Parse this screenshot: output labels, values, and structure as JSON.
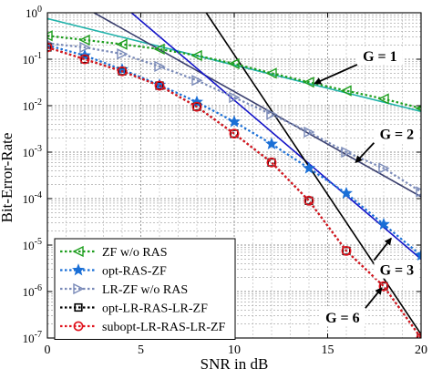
{
  "chart_data": {
    "type": "line",
    "title": "",
    "xlabel": "SNR in dB",
    "ylabel": "Bit-Error-Rate",
    "xlim": [
      0,
      20
    ],
    "ylim": [
      1e-07,
      1
    ],
    "y_scale": "log",
    "grid": "on (major and minor)",
    "legend_placement": "bottom-left",
    "x_ticks": [
      0,
      5,
      10,
      15,
      20
    ],
    "y_ticks": [
      {
        "value": 1,
        "mantissa": "10",
        "exponent": "0"
      },
      {
        "value": 0.1,
        "mantissa": "10",
        "exponent": "-1"
      },
      {
        "value": 0.01,
        "mantissa": "10",
        "exponent": "-2"
      },
      {
        "value": 0.001,
        "mantissa": "10",
        "exponent": "-3"
      },
      {
        "value": 0.0001,
        "mantissa": "10",
        "exponent": "-4"
      },
      {
        "value": 1e-05,
        "mantissa": "10",
        "exponent": "-5"
      },
      {
        "value": 1e-06,
        "mantissa": "10",
        "exponent": "-6"
      },
      {
        "value": 1e-07,
        "mantissa": "10",
        "exponent": "-7"
      }
    ],
    "series": [
      {
        "name": "ZF w/o RAS",
        "color": "#1e9e1e",
        "dash": "dotted",
        "marker": "triangle-left",
        "x": [
          0,
          2,
          4,
          6,
          8,
          10,
          12,
          14,
          16,
          18,
          20
        ],
        "y": [
          0.32,
          0.26,
          0.21,
          0.165,
          0.12,
          0.08,
          0.05,
          0.032,
          0.021,
          0.014,
          0.0088
        ]
      },
      {
        "name": "opt-RAS-ZF",
        "color": "#1a6fd6",
        "dash": "dotted",
        "marker": "star",
        "x": [
          0,
          2,
          4,
          6,
          8,
          10,
          12,
          14,
          16,
          18,
          20
        ],
        "y": [
          0.2,
          0.12,
          0.06,
          0.028,
          0.012,
          0.0045,
          0.0015,
          0.00045,
          0.00013,
          2.8e-05,
          6e-06
        ]
      },
      {
        "name": "LR-ZF w/o RAS",
        "color": "#7a8ab8",
        "dash": "dotted",
        "marker": "triangle-right",
        "x": [
          0,
          2,
          4,
          6,
          8,
          10,
          12,
          14,
          16,
          18,
          20
        ],
        "y": [
          0.22,
          0.18,
          0.13,
          0.07,
          0.035,
          0.015,
          0.0065,
          0.0027,
          0.001,
          0.00045,
          0.00014
        ]
      },
      {
        "name": "opt-LR-RAS-LR-ZF",
        "color": "#000000",
        "dash": "dotted",
        "marker": "square",
        "x": [
          0,
          2,
          4,
          6,
          8,
          10,
          12,
          14,
          16,
          18,
          20
        ],
        "y": [
          0.18,
          0.1,
          0.055,
          0.027,
          0.0095,
          0.0025,
          0.0006,
          9e-05,
          7.5e-06,
          1.3e-06,
          1e-07
        ]
      },
      {
        "name": "subopt-LR-RAS-LR-ZF",
        "color": "#e0141e",
        "dash": "dotted",
        "marker": "circle",
        "x": [
          0,
          2,
          4,
          6,
          8,
          10,
          12,
          14,
          16,
          18,
          20
        ],
        "y": [
          0.18,
          0.1,
          0.055,
          0.027,
          0.0095,
          0.0025,
          0.0006,
          9e-05,
          7.5e-06,
          1.3e-06,
          1e-07
        ]
      }
    ],
    "reference_lines": [
      {
        "label": "G = 1",
        "color": "#20b2aa",
        "x": [
          0,
          20
        ],
        "y": [
          0.75,
          0.0075
        ]
      },
      {
        "label": "G = 2",
        "color": "#3a3f6e",
        "x": [
          2.5,
          20
        ],
        "y": [
          1.0,
          0.00011
        ]
      },
      {
        "label": "G = 3",
        "color": "#1414c8",
        "x": [
          4.5,
          20
        ],
        "y": [
          1.0,
          5e-06
        ]
      },
      {
        "label": "G = 6",
        "color": "#000000",
        "x": [
          8.5,
          20
        ],
        "y": [
          1.0,
          1.2e-07
        ]
      }
    ],
    "annotations": [
      {
        "text": "G = 1",
        "x": 17.8,
        "y": 0.12,
        "arrow_to": [
          14.3,
          0.03
        ]
      },
      {
        "text": "G = 2",
        "x": 18.7,
        "y": 0.0025,
        "arrow_to": [
          16.5,
          0.0006
        ]
      },
      {
        "text": "G = 3",
        "x": 18.7,
        "y": 3e-06,
        "arrow_to": [
          18.4,
          1.4e-05
        ]
      },
      {
        "text": "G = 6",
        "x": 15.8,
        "y": 2.8e-07,
        "arrow_to": [
          17.9,
          1.2e-06
        ]
      }
    ]
  }
}
